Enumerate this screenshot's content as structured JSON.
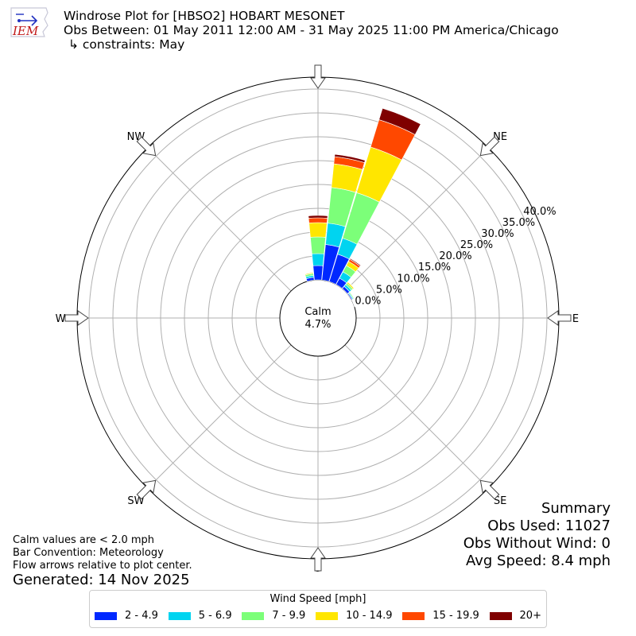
{
  "header": {
    "logo_text": "IEM",
    "title_line1": "Windrose Plot for [HBSO2] HOBART MESONET",
    "title_line2": "Obs Between: 01 May 2011 12:00 AM - 31 May 2025 11:00 PM America/Chicago",
    "title_line3": "↳ constraints: May"
  },
  "chart_data": {
    "type": "windrose",
    "directions": [
      "N",
      "NE",
      "E",
      "SE",
      "S",
      "SW",
      "W",
      "NW"
    ],
    "radial_ticks": [
      "0.0%",
      "5.0%",
      "10.0%",
      "15.0%",
      "20.0%",
      "25.0%",
      "30.0%",
      "35.0%",
      "40.0%"
    ],
    "radial_max": 40,
    "calm_label": "Calm",
    "calm_value": "4.7%",
    "calm_percent": 4.7,
    "colors": [
      "#0028ff",
      "#00d4f0",
      "#7cff79",
      "#ffe600",
      "#ff4800",
      "#7f0000"
    ],
    "series": [
      {
        "dir_deg": 0,
        "stacks": [
          3.0,
          2.5,
          3.5,
          3.0,
          1.0,
          0.5
        ]
      },
      {
        "dir_deg": 11.25,
        "stacks": [
          7.5,
          4.5,
          7.5,
          5.0,
          1.5,
          0.5
        ]
      },
      {
        "dir_deg": 22.5,
        "stacks": [
          6.0,
          3.5,
          10.0,
          10.0,
          6.0,
          2.5
        ]
      },
      {
        "dir_deg": 33.75,
        "stacks": [
          1.5,
          1.5,
          1.5,
          1.0,
          0.5,
          0.2
        ]
      },
      {
        "dir_deg": 45,
        "stacks": [
          0.6,
          0.5,
          0.4,
          0.3,
          0.1,
          0.0
        ]
      },
      {
        "dir_deg": 56.25,
        "stacks": [
          0.2,
          0.2,
          0.2,
          0.1,
          0.0,
          0.0
        ]
      },
      {
        "dir_deg": 67.5,
        "stacks": [
          0.1,
          0.1,
          0.1,
          0.0,
          0.0,
          0.0
        ]
      },
      {
        "dir_deg": 348.75,
        "stacks": [
          0.6,
          0.4,
          0.4,
          0.2,
          0.1,
          0.0
        ]
      }
    ]
  },
  "footnotes": {
    "calm_note": "Calm values are < 2.0 mph",
    "bar_convention": "Bar Convention: Meteorology",
    "flow_arrows": "Flow arrows relative to plot center.",
    "generated": "Generated: 14 Nov 2025"
  },
  "summary": {
    "heading": "Summary",
    "obs_used": "Obs Used: 11027",
    "obs_without_wind": "Obs Without Wind: 0",
    "avg_speed": "Avg Speed: 8.4 mph"
  },
  "legend": {
    "title": "Wind Speed [mph]",
    "items": [
      {
        "label": "2 - 4.9",
        "color": "#0028ff"
      },
      {
        "label": "5 - 6.9",
        "color": "#00d4f0"
      },
      {
        "label": "7 - 9.9",
        "color": "#7cff79"
      },
      {
        "label": "10 - 14.9",
        "color": "#ffe600"
      },
      {
        "label": "15 - 19.9",
        "color": "#ff4800"
      },
      {
        "label": "20+",
        "color": "#7f0000"
      }
    ]
  }
}
